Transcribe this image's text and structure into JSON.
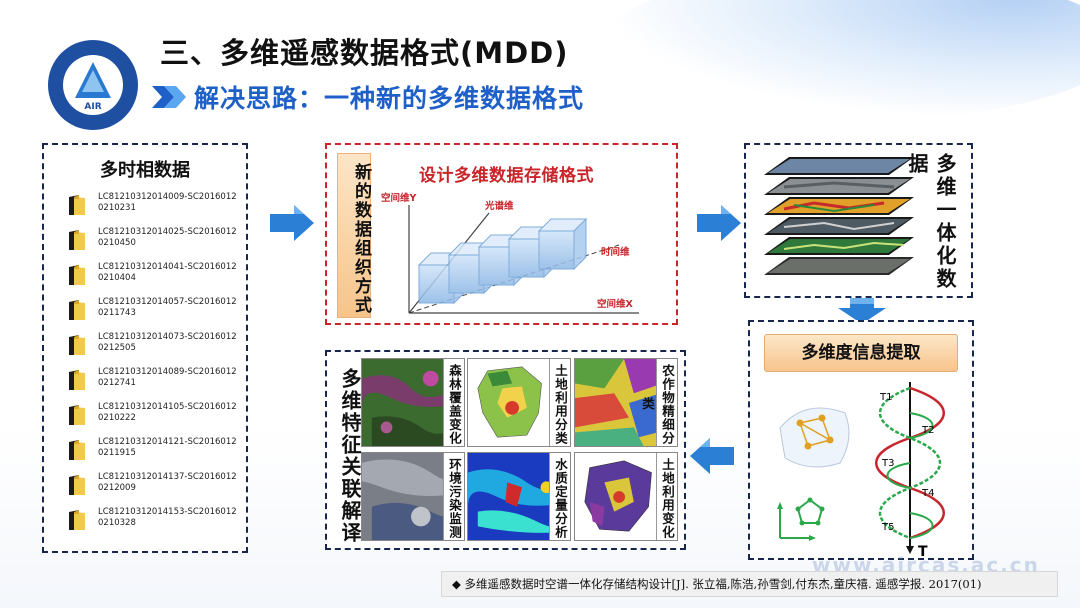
{
  "header": {
    "title": "三、多维遥感数据格式(MDD)",
    "subtitle": "解决思路：一种新的多维数据格式",
    "logo_caption": "AIR"
  },
  "list_panel": {
    "heading": "多时相数据",
    "files": [
      "LC81210312014009-SC20160120210231",
      "LC81210312014025-SC20160120210450",
      "LC81210312014041-SC20160120210404",
      "LC81210312014057-SC20160120211743",
      "LC81210312014073-SC20160120212505",
      "LC81210312014089-SC20160120212741",
      "LC81210312014105-SC20160120210222",
      "LC81210312014121-SC20160120211915",
      "LC81210312014137-SC20160120212009",
      "LC81210312014153-SC20160120210328"
    ]
  },
  "storage_panel": {
    "vertical_label": "新的数据组织方式",
    "title": "设计多维数据存储格式",
    "axis_y": "空间维Y",
    "axis_spectral": "光谱维",
    "axis_time": "时间维",
    "axis_x": "空间维X"
  },
  "stack_panel": {
    "label": "多维一体化数据"
  },
  "extract_panel": {
    "title": "多维度信息提取",
    "wave_labels": [
      "T1",
      "T2",
      "T3",
      "T4",
      "T5"
    ],
    "axis_t": "T"
  },
  "analysis_panel": {
    "vertical_label": "多维特征关联解译",
    "tiles": [
      {
        "label": "森林覆盖变化"
      },
      {
        "label": "土地利用分类"
      },
      {
        "label": "农作物精细分类"
      },
      {
        "label": "环境污染监测"
      },
      {
        "label": "水质定量分析"
      },
      {
        "label": "土地利用变化"
      }
    ]
  },
  "footnote": "◆ 多维遥感数据时空谱一体化存储结构设计[J]. 张立福,陈浩,孙雪剑,付东杰,童庆禧. 遥感学报. 2017(01)",
  "watermark": "www.aircas.ac.cn",
  "colors": {
    "title_blue": "#1e60c8",
    "panel_border": "#17264d",
    "accent_red": "#c8262b",
    "orange_box": "#f6c48a",
    "arrow_blue": "#2b7fd4"
  }
}
